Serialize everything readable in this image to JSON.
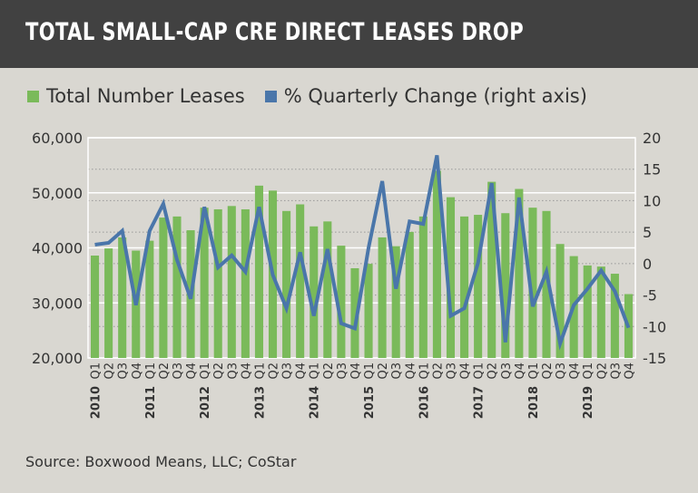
{
  "header": {
    "title": "TOTAL SMALL-CAP CRE DIRECT LEASES DROP"
  },
  "source": "Source: Boxwood Means, LLC; CoStar",
  "chart_data": {
    "type": "bar+line",
    "colors": {
      "bars": "#7aba5a",
      "line": "#4a76aa"
    },
    "legend": [
      "Total Number Leases",
      "% Quarterly Change (right axis)"
    ],
    "legend_position": "top",
    "categories": [
      "2010 Q1",
      "Q2",
      "Q3",
      "Q4",
      "2011 Q1",
      "Q2",
      "Q3",
      "Q4",
      "2012 Q1",
      "Q2",
      "Q3",
      "Q4",
      "2013 Q1",
      "Q2",
      "Q3",
      "Q4",
      "2014 Q1",
      "Q2",
      "Q3",
      "Q4",
      "2015 Q1",
      "Q2",
      "Q3",
      "Q4",
      "2016 Q1",
      "Q2",
      "Q3",
      "Q4",
      "2017 Q1",
      "Q2",
      "Q3",
      "Q4",
      "2018 Q1",
      "Q2",
      "Q3",
      "Q4",
      "2019 Q1",
      "Q2",
      "Q3",
      "Q4"
    ],
    "series": [
      {
        "name": "Total Number Leases",
        "axis": "left",
        "type": "bar",
        "values": [
          38600,
          39900,
          41900,
          39500,
          41300,
          45500,
          45700,
          43200,
          47300,
          47000,
          47600,
          47000,
          51300,
          50400,
          46700,
          47900,
          43900,
          44800,
          40400,
          36300,
          37100,
          41900,
          40300,
          42900,
          45700,
          54000,
          49200,
          45700,
          46000,
          52000,
          46300,
          50700,
          47300,
          46700,
          40700,
          38500,
          36800,
          36600,
          35300,
          31600
        ]
      },
      {
        "name": "% Quarterly Change (right axis)",
        "axis": "right",
        "type": "line",
        "values": [
          3.0,
          3.3,
          5.2,
          -6.6,
          5.2,
          9.5,
          0.6,
          -5.6,
          9.0,
          -0.6,
          1.3,
          -1.3,
          9.0,
          -1.8,
          -7.1,
          1.8,
          -8.3,
          2.3,
          -9.5,
          -10.3,
          2.5,
          13.1,
          -4.0,
          6.7,
          6.3,
          17.2,
          -8.3,
          -7.1,
          0.1,
          12.8,
          -12.5,
          10.5,
          -6.8,
          -1.3,
          -12.7,
          -6.6,
          -4.0,
          -1.1,
          -4.4,
          -10.2
        ]
      }
    ],
    "y_left": {
      "range": [
        20000,
        60000
      ],
      "ticks": [
        "20,000",
        "30,000",
        "40,000",
        "50,000",
        "60,000"
      ]
    },
    "y_right": {
      "range": [
        -15,
        20
      ],
      "ticks": [
        "-15",
        "-10",
        "-5",
        "0",
        "5",
        "10",
        "15",
        "20"
      ]
    },
    "grid": true
  }
}
